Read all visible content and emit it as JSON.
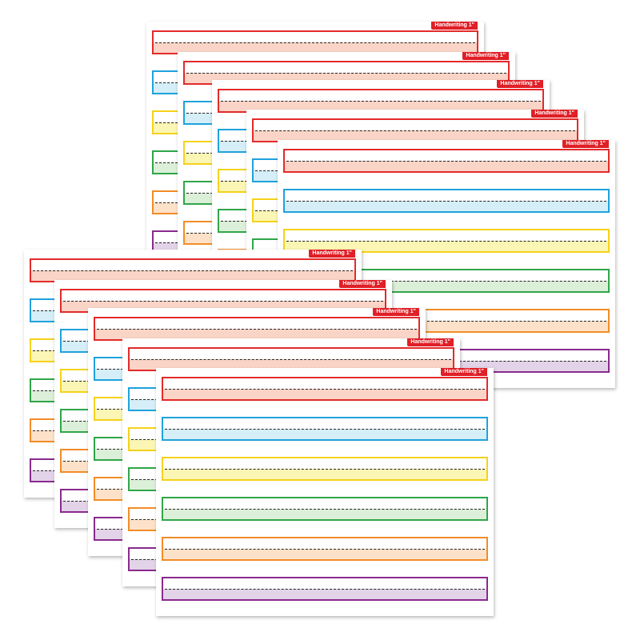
{
  "sheet_label": "Handwriting 1\"",
  "rows": [
    {
      "name": "red",
      "border": "#e32a2a",
      "tint": "#fad4c6"
    },
    {
      "name": "blue",
      "border": "#1fa3dc",
      "tint": "#d5eef8"
    },
    {
      "name": "yellow",
      "border": "#f5d21b",
      "tint": "#fcf6b4"
    },
    {
      "name": "green",
      "border": "#2fa649",
      "tint": "#dcefd8"
    },
    {
      "name": "orange",
      "border": "#f28c28",
      "tint": "#fde2c9"
    },
    {
      "name": "purple",
      "border": "#8a2a8c",
      "tint": "#e3d3e8"
    }
  ],
  "sheet_count": 10
}
